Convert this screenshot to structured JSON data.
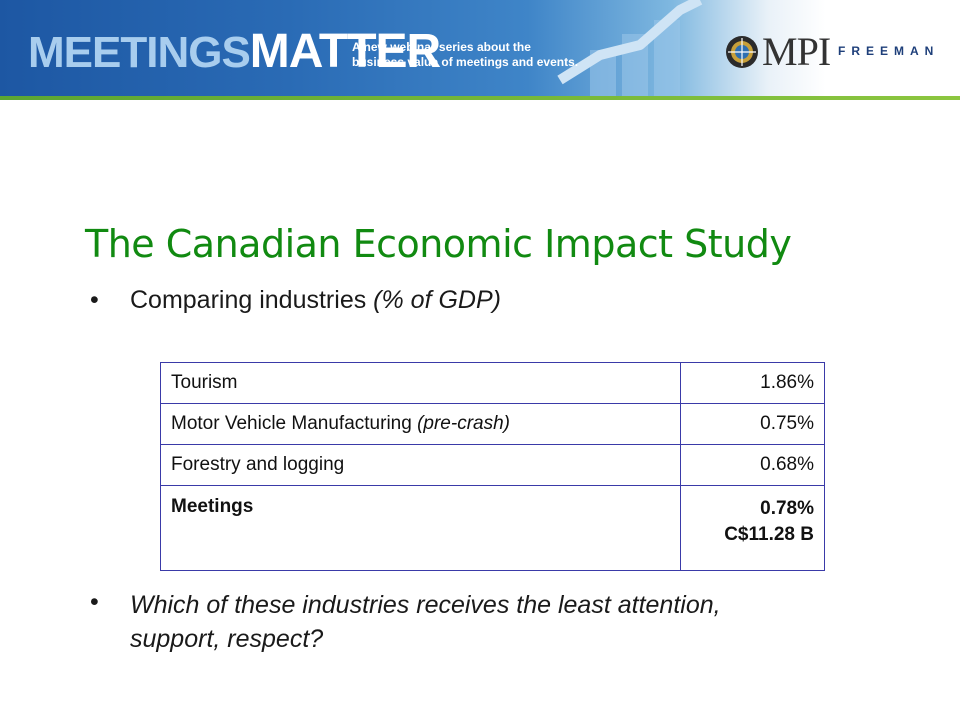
{
  "banner": {
    "brand_light": "MEETINGS",
    "brand_bold": "MATTER",
    "tagline_line1": "A new webinar series about the",
    "tagline_line2": "business value of meetings and events.",
    "partner_logo": "MPI",
    "partner_name": "FREEMAN",
    "colors": {
      "banner_blue": "#1d57a3",
      "stripe_green": "#5ba633"
    }
  },
  "slide": {
    "title": "The Canadian Economic Impact Study",
    "title_color": "#118a11",
    "bullet1_text": "Comparing industries ",
    "bullet1_unit": "(% of GDP)",
    "bullet2_text": "Which of these industries receives the least attention, support, respect?",
    "bullet_glyph": "•"
  },
  "table": {
    "rows": [
      {
        "label": "Tourism",
        "qualifier": "",
        "value": "1.86%"
      },
      {
        "label": "Motor Vehicle Manufacturing ",
        "qualifier": "(pre-crash)",
        "value": "0.75%"
      },
      {
        "label": "Forestry and logging",
        "qualifier": "",
        "value": "0.68%"
      },
      {
        "label": "Meetings",
        "qualifier": "",
        "value": "0.78%",
        "value2": "C$11.28 B"
      }
    ]
  }
}
